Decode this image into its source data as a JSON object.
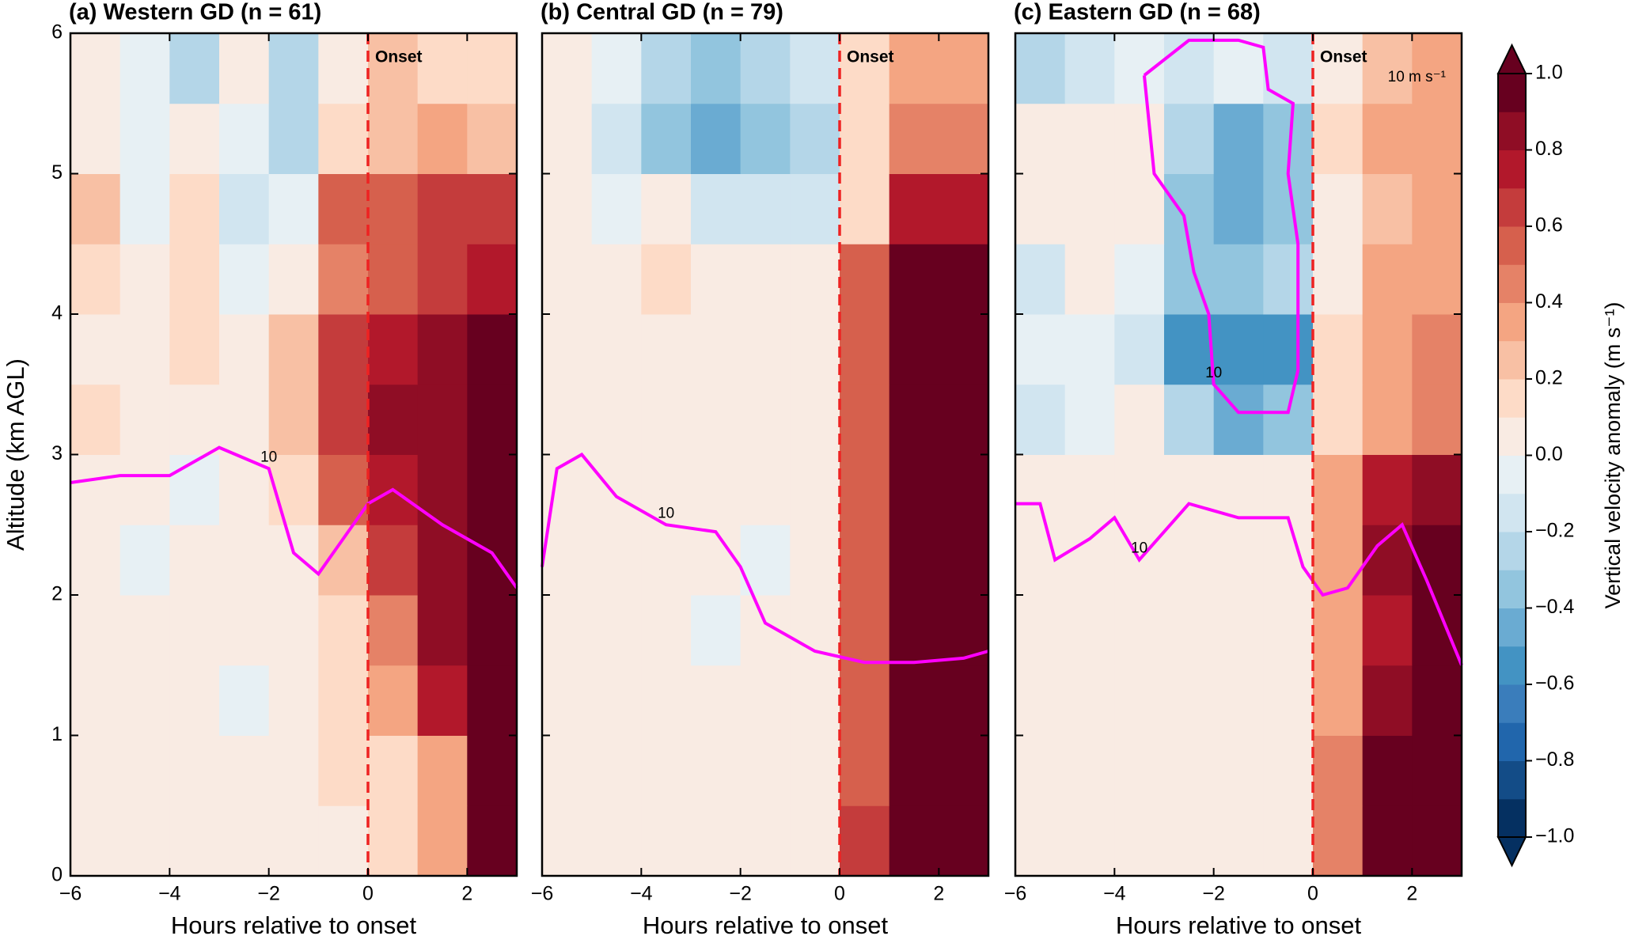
{
  "chart_data": [
    {
      "type": "heatmap",
      "title": "(a) Western GD (n = 61)",
      "xlabel": "Hours relative to onset",
      "ylabel": "Altitude (km AGL)",
      "xlim": [
        -6,
        3
      ],
      "ylim": [
        0,
        6
      ],
      "xticks": [
        {
          "value": -6,
          "label": "−6"
        },
        {
          "value": -4,
          "label": "−4"
        },
        {
          "value": -2,
          "label": "−2"
        },
        0,
        2
      ],
      "yticks": [
        0,
        1,
        2,
        3,
        4,
        5,
        6
      ],
      "x_edges": [
        -6,
        -5,
        -4,
        -3,
        -2,
        -1,
        0,
        1,
        2,
        3
      ],
      "y_edges": [
        0,
        0.5,
        1,
        1.5,
        2,
        2.5,
        3,
        3.5,
        4,
        4.5,
        5,
        5.5,
        6
      ],
      "values": [
        [
          0.05,
          0.05,
          0.05,
          0.05,
          0.05,
          0.05,
          0.1,
          0.3,
          0.9
        ],
        [
          0.05,
          0.05,
          0,
          0,
          0,
          0.1,
          0.1,
          0.3,
          0.9
        ],
        [
          0.05,
          0.05,
          0,
          -0.05,
          0,
          0.1,
          0.3,
          0.7,
          0.9
        ],
        [
          0.05,
          0.05,
          0,
          0,
          0,
          0.1,
          0.4,
          0.8,
          0.9
        ],
        [
          0,
          -0.05,
          0,
          0,
          0,
          0.2,
          0.6,
          0.8,
          0.9
        ],
        [
          0.05,
          0,
          -0.05,
          0,
          0.1,
          0.5,
          0.7,
          0.8,
          0.9
        ],
        [
          0.1,
          0,
          0,
          0,
          0.2,
          0.6,
          0.8,
          0.8,
          0.9
        ],
        [
          0,
          0.05,
          0.1,
          0,
          0.2,
          0.6,
          0.7,
          0.8,
          0.9
        ],
        [
          0.1,
          0,
          0.1,
          -0.1,
          0,
          0.4,
          0.5,
          0.6,
          0.7
        ],
        [
          0.2,
          -0.1,
          0.1,
          -0.2,
          -0.1,
          0.5,
          0.5,
          0.6,
          0.6
        ],
        [
          0,
          -0.1,
          0,
          -0.1,
          -0.3,
          0.1,
          0.2,
          0.3,
          0.2
        ],
        [
          0,
          -0.1,
          -0.3,
          0,
          -0.3,
          0,
          0.2,
          0.1,
          0.1
        ]
      ],
      "onset": {
        "x": 0,
        "label": "Onset",
        "color": "#ee2222"
      },
      "contours": [
        {
          "label": "10",
          "color": "#ff00ff",
          "x": [
            -6,
            -5,
            -4,
            -3,
            -2,
            -1.5,
            -1,
            -0.5,
            0,
            0.5,
            1.5,
            2.5,
            3
          ],
          "y": [
            2.8,
            2.85,
            2.85,
            3.05,
            2.9,
            2.3,
            2.15,
            2.4,
            2.65,
            2.75,
            2.5,
            2.3,
            2.05
          ]
        }
      ]
    },
    {
      "type": "heatmap",
      "title": "(b) Central GD (n = 79)",
      "xlabel": "Hours relative to onset",
      "xlim": [
        -6,
        3
      ],
      "ylim": [
        0,
        6
      ],
      "xticks": [
        {
          "value": -6,
          "label": "−6"
        },
        {
          "value": -4,
          "label": "−4"
        },
        {
          "value": -2,
          "label": "−2"
        },
        0,
        2
      ],
      "x_edges": [
        -6,
        -5,
        -4,
        -3,
        -2,
        -1,
        0,
        1,
        2,
        3
      ],
      "y_edges": [
        0,
        0.5,
        1,
        1.5,
        2,
        2.5,
        3,
        3.5,
        4,
        4.5,
        5,
        5.5,
        6
      ],
      "values": [
        [
          0,
          0,
          0,
          0,
          0,
          0,
          0.6,
          0.9,
          0.9
        ],
        [
          0,
          0,
          0,
          0,
          0,
          0,
          0.5,
          0.9,
          0.9
        ],
        [
          0,
          0,
          0,
          0,
          0,
          0,
          0.5,
          0.9,
          0.9
        ],
        [
          0,
          0,
          0,
          -0.05,
          0,
          0,
          0.5,
          0.9,
          0.9
        ],
        [
          0,
          0,
          0,
          0,
          -0.05,
          0,
          0.5,
          0.9,
          0.9
        ],
        [
          0,
          0,
          0,
          0,
          0,
          0,
          0.5,
          0.9,
          0.9
        ],
        [
          0,
          0,
          0,
          0,
          0,
          0,
          0.5,
          0.9,
          0.9
        ],
        [
          0,
          0,
          0,
          0,
          0,
          0,
          0.5,
          0.9,
          0.9
        ],
        [
          0,
          0,
          0.1,
          0,
          0,
          0,
          0.5,
          0.9,
          0.9
        ],
        [
          0,
          -0.1,
          0.05,
          -0.2,
          -0.2,
          -0.2,
          0.1,
          0.7,
          0.7
        ],
        [
          0,
          -0.2,
          -0.4,
          -0.5,
          -0.4,
          -0.3,
          0.1,
          0.4,
          0.4
        ],
        [
          0,
          -0.1,
          -0.3,
          -0.4,
          -0.3,
          -0.2,
          0.1,
          0.3,
          0.3
        ]
      ],
      "onset": {
        "x": 0,
        "label": "Onset",
        "color": "#ee2222"
      },
      "contours": [
        {
          "label": "10",
          "color": "#ff00ff",
          "x": [
            -6,
            -5.7,
            -5.2,
            -4.5,
            -3.5,
            -2.5,
            -2,
            -1.5,
            -0.5,
            0.5,
            1.5,
            2.5,
            3
          ],
          "y": [
            2.2,
            2.9,
            3.0,
            2.7,
            2.5,
            2.45,
            2.2,
            1.8,
            1.6,
            1.52,
            1.52,
            1.55,
            1.6
          ]
        }
      ]
    },
    {
      "type": "heatmap",
      "title": "(c) Eastern GD (n = 68)",
      "xlabel": "Hours relative to onset",
      "xlim": [
        -6,
        3
      ],
      "ylim": [
        0,
        6
      ],
      "xticks": [
        {
          "value": -6,
          "label": "−6"
        },
        {
          "value": -4,
          "label": "−4"
        },
        {
          "value": -2,
          "label": "−2"
        },
        0,
        2
      ],
      "x_edges": [
        -6,
        -5,
        -4,
        -3,
        -2,
        -1,
        0,
        1,
        2,
        3
      ],
      "y_edges": [
        0,
        0.5,
        1,
        1.5,
        2,
        2.5,
        3,
        3.5,
        4,
        4.5,
        5,
        5.5,
        6
      ],
      "values": [
        [
          0,
          0,
          0,
          0,
          0,
          0,
          0.4,
          0.9,
          0.9
        ],
        [
          0,
          0,
          0,
          0,
          0,
          0,
          0.4,
          0.9,
          0.9
        ],
        [
          0,
          0,
          0,
          0.05,
          0,
          0,
          0.3,
          0.8,
          0.9
        ],
        [
          0.05,
          0,
          0,
          0,
          0,
          0,
          0.3,
          0.7,
          0.9
        ],
        [
          0,
          0,
          0.05,
          0,
          0,
          0,
          0.3,
          0.8,
          0.9
        ],
        [
          0,
          0,
          0,
          0,
          0,
          0,
          0.3,
          0.7,
          0.8
        ],
        [
          -0.2,
          -0.1,
          0,
          -0.3,
          -0.5,
          -0.4,
          0.1,
          0.3,
          0.4
        ],
        [
          -0.1,
          -0.1,
          -0.2,
          -0.6,
          -0.6,
          -0.6,
          0.1,
          0.3,
          0.4
        ],
        [
          -0.2,
          0,
          -0.1,
          -0.4,
          -0.4,
          -0.3,
          0,
          0.3,
          0.3
        ],
        [
          0,
          0,
          0,
          -0.4,
          -0.5,
          -0.4,
          0,
          0.2,
          0.3
        ],
        [
          0,
          0,
          0,
          -0.3,
          -0.5,
          -0.4,
          0.1,
          0.3,
          0.3
        ],
        [
          -0.3,
          -0.2,
          -0.1,
          -0.2,
          -0.1,
          -0.2,
          0,
          0.2,
          0.3
        ]
      ],
      "onset": {
        "x": 0,
        "label": "Onset",
        "color": "#ee2222"
      },
      "reference_vector_label": "10 m s⁻¹",
      "contours": [
        {
          "label": "10",
          "color": "#ff00ff",
          "x": [
            -6,
            -5.5,
            -5.2,
            -4.5,
            -4,
            -3.5,
            -2.5,
            -1.5,
            -0.5,
            -0.2,
            0.2,
            0.7,
            1.3,
            1.8,
            2.3,
            3
          ],
          "y": [
            2.65,
            2.65,
            2.25,
            2.4,
            2.55,
            2.25,
            2.65,
            2.55,
            2.55,
            2.2,
            2.0,
            2.05,
            2.35,
            2.5,
            2.1,
            1.5
          ]
        },
        {
          "label": "10",
          "color": "#ff00ff",
          "x": [
            -3.4,
            -3.2,
            -2.6,
            -2.4,
            -2.1,
            -2.0,
            -1.5,
            -0.5,
            -0.3,
            -0.3,
            -0.5,
            -0.4,
            -0.9,
            -1.0,
            -1.5,
            -2.5,
            -3.4
          ],
          "y": [
            5.7,
            5.0,
            4.7,
            4.3,
            4.0,
            3.5,
            3.3,
            3.3,
            3.6,
            4.5,
            5.0,
            5.5,
            5.6,
            5.9,
            5.95,
            5.95,
            5.7
          ]
        }
      ]
    },
    {
      "type": "colorbar",
      "label": "Vertical velocity anomaly (m s⁻¹)",
      "ylim": [
        -1,
        1
      ],
      "levels": [
        -1,
        -0.9,
        -0.8,
        -0.7,
        -0.6,
        -0.5,
        -0.4,
        -0.3,
        -0.2,
        -0.1,
        0,
        0.1,
        0.2,
        0.3,
        0.4,
        0.5,
        0.6,
        0.7,
        0.8,
        0.9,
        1
      ],
      "colors": [
        "#053061",
        "#134c87",
        "#2166ac",
        "#3a7dbb",
        "#4393c3",
        "#6aabd2",
        "#92c5de",
        "#b4d6e8",
        "#d1e5f0",
        "#e7f0f4",
        "#f9ebe3",
        "#fddbc7",
        "#f8c0a4",
        "#f4a582",
        "#e58267",
        "#d6604d",
        "#c43c3c",
        "#b2182b",
        "#8f0d25",
        "#67001f"
      ],
      "ticks": [
        {
          "value": -1,
          "label": "−1.0"
        },
        {
          "value": -0.8,
          "label": "−0.8"
        },
        {
          "value": -0.6,
          "label": "−0.6"
        },
        {
          "value": -0.4,
          "label": "−0.4"
        },
        {
          "value": -0.2,
          "label": "−0.2"
        },
        {
          "value": 0,
          "label": "0.0"
        },
        0.2,
        0.4,
        0.6,
        0.8,
        {
          "value": 1,
          "label": "1.0"
        }
      ]
    }
  ]
}
